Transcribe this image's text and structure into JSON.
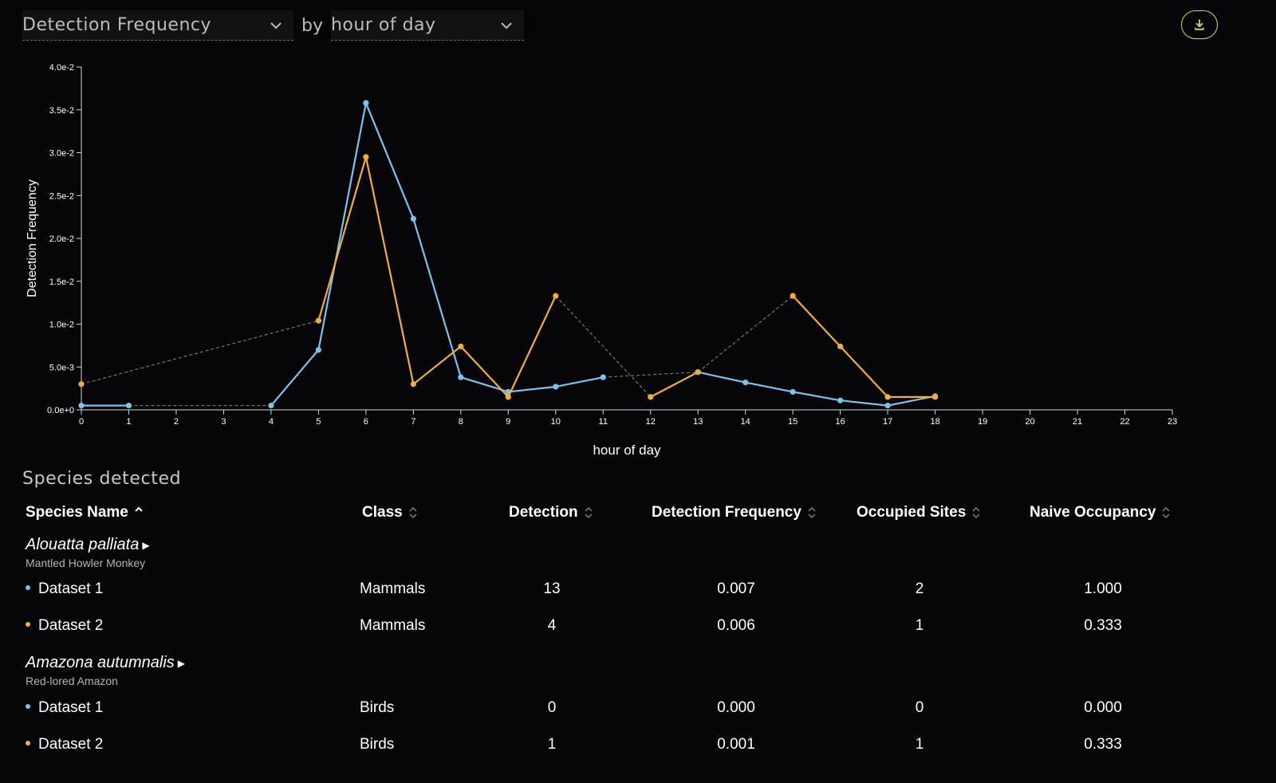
{
  "toolbar": {
    "metric_label": "Detection Frequency",
    "by_label": "by",
    "group_label": "hour of day",
    "download_icon": "download-icon"
  },
  "colors": {
    "dataset1": "#79c3ef",
    "dataset2": "#f3ae3a",
    "accent": "#b6e35a",
    "connector": "#8a8a8a"
  },
  "chart_data": {
    "type": "line",
    "xlabel": "hour of day",
    "ylabel": "Detection Frequency",
    "xlim": [
      0,
      23
    ],
    "ylim": [
      0,
      0.04
    ],
    "x_ticks": [
      "0",
      "1",
      "2",
      "3",
      "4",
      "5",
      "6",
      "7",
      "8",
      "9",
      "10",
      "11",
      "12",
      "13",
      "14",
      "15",
      "16",
      "17",
      "18",
      "19",
      "20",
      "21",
      "22",
      "23"
    ],
    "y_ticks": [
      "0.0e+0",
      "5.0e-3",
      "1.0e-2",
      "1.5e-2",
      "2.0e-2",
      "2.5e-2",
      "3.0e-2",
      "3.5e-2",
      "4.0e-2"
    ],
    "grid": false,
    "series": [
      {
        "name": "Dataset 1",
        "color": "#79c3ef",
        "points": [
          [
            0,
            0.0005
          ],
          [
            1,
            0.0005
          ],
          [
            4,
            0.0005
          ],
          [
            5,
            0.007
          ],
          [
            6,
            0.0358
          ],
          [
            7,
            0.0223
          ],
          [
            8,
            0.0038
          ],
          [
            9,
            0.0021
          ],
          [
            10,
            0.0027
          ],
          [
            11,
            0.0038
          ],
          [
            13,
            0.0044
          ],
          [
            14,
            0.0032
          ],
          [
            15,
            0.0021
          ],
          [
            16,
            0.0011
          ],
          [
            17,
            0.0005
          ],
          [
            18,
            0.0016
          ]
        ]
      },
      {
        "name": "Dataset 2",
        "color": "#f3ae3a",
        "points": [
          [
            0,
            0.003
          ],
          [
            5,
            0.0104
          ],
          [
            6,
            0.0295
          ],
          [
            7,
            0.003
          ],
          [
            8,
            0.0074
          ],
          [
            9,
            0.0015
          ],
          [
            10,
            0.0133
          ],
          [
            12,
            0.0015
          ],
          [
            13,
            0.0044
          ],
          [
            15,
            0.0133
          ],
          [
            16,
            0.0074
          ],
          [
            17,
            0.0015
          ],
          [
            18,
            0.0015
          ]
        ]
      }
    ]
  },
  "table": {
    "title": "Species detected",
    "headers": {
      "species": "Species Name",
      "class": "Class",
      "detection": "Detection",
      "frequency": "Detection Frequency",
      "sites": "Occupied Sites",
      "occupancy": "Naive Occupancy"
    },
    "species": [
      {
        "name": "Alouatta palliata",
        "common": "Mantled Howler Monkey",
        "rows": [
          {
            "dataset": "Dataset 1",
            "class": "Mammals",
            "detection": "13",
            "frequency": "0.007",
            "sites": "2",
            "occupancy": "1.000"
          },
          {
            "dataset": "Dataset 2",
            "class": "Mammals",
            "detection": "4",
            "frequency": "0.006",
            "sites": "1",
            "occupancy": "0.333"
          }
        ]
      },
      {
        "name": "Amazona autumnalis",
        "common": "Red-lored Amazon",
        "rows": [
          {
            "dataset": "Dataset 1",
            "class": "Birds",
            "detection": "0",
            "frequency": "0.000",
            "sites": "0",
            "occupancy": "0.000"
          },
          {
            "dataset": "Dataset 2",
            "class": "Birds",
            "detection": "1",
            "frequency": "0.001",
            "sites": "1",
            "occupancy": "0.333"
          }
        ]
      }
    ]
  }
}
